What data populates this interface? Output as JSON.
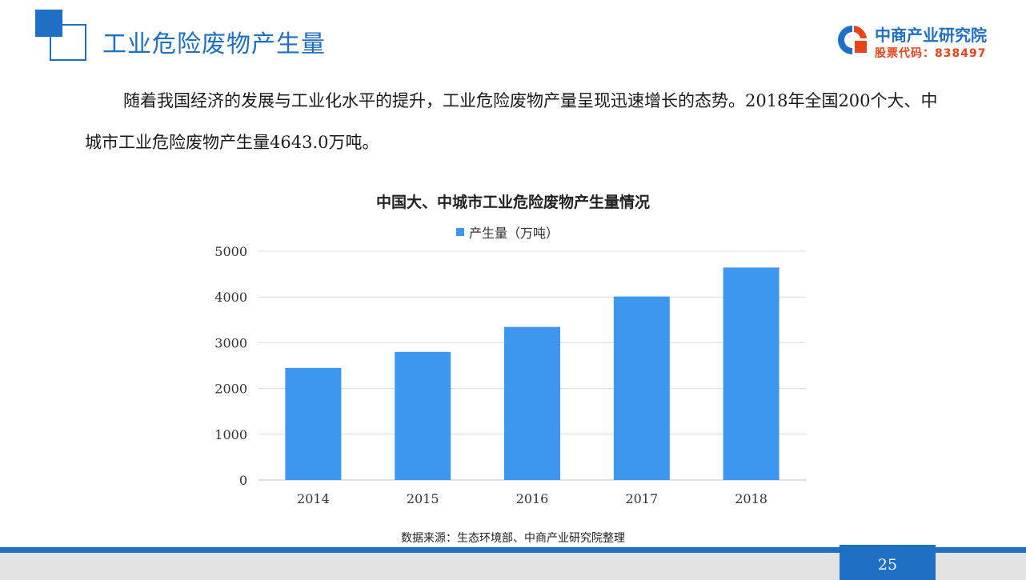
{
  "header": {
    "title": "工业危险废物产生量",
    "logo_name": "中商产业研究院",
    "logo_code": "股票代码：838497"
  },
  "body": {
    "paragraph": "随着我国经济的发展与工业化水平的提升，工业危险废物产量呈现迅速增长的态势。2018年全国200个大、中城市工业危险废物产生量4643.0万吨。"
  },
  "chart_data": {
    "type": "bar",
    "title": "中国大、中城市工业危险废物产生量情况",
    "categories": [
      "2014",
      "2015",
      "2016",
      "2017",
      "2018"
    ],
    "series": [
      {
        "name": "产生量（万吨）",
        "values": [
          2450,
          2800,
          3345,
          4010,
          4643
        ],
        "color": "#3d97ee"
      }
    ],
    "ylim": [
      0,
      5000
    ],
    "yticks": [
      "0",
      "1000",
      "2000",
      "3000",
      "4000",
      "5000"
    ],
    "grid": true,
    "legend": "top"
  },
  "footer": {
    "source": "数据来源：生态环境部、中商产业研究院整理",
    "page_number": "25"
  },
  "colors": {
    "brand_blue": "#1f6fc5",
    "bar_blue": "#3d97ee",
    "logo_orange": "#e8431b"
  }
}
